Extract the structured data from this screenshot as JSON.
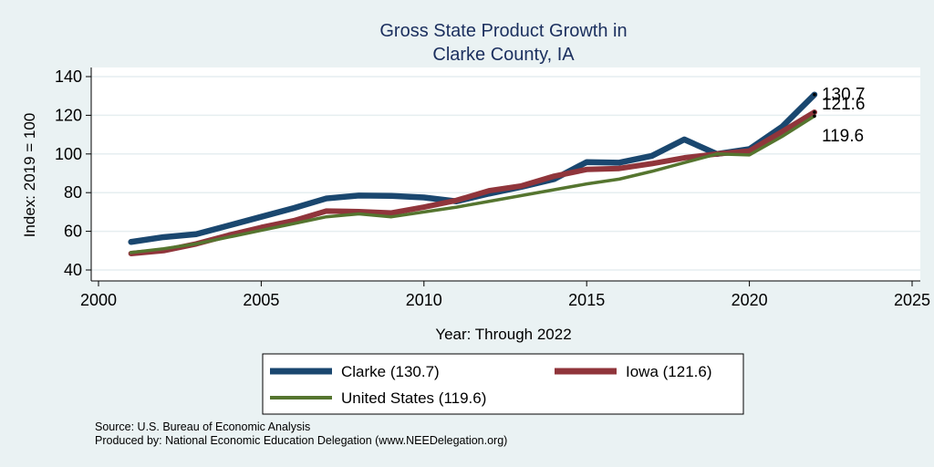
{
  "chart_data": {
    "type": "line",
    "title_line1": "Gross State Product Growth in",
    "title_line2": "Clarke County, IA",
    "xlabel": "Year: Through 2022",
    "ylabel": "Index: 2019 = 100",
    "xlim": [
      2000,
      2025
    ],
    "ylim": [
      40,
      140
    ],
    "x_ticks": [
      2000,
      2005,
      2010,
      2015,
      2020,
      2025
    ],
    "y_ticks": [
      40,
      60,
      80,
      100,
      120,
      140
    ],
    "grid": true,
    "legend_position": "bottom",
    "x": [
      2001,
      2002,
      2003,
      2004,
      2005,
      2006,
      2007,
      2008,
      2009,
      2010,
      2011,
      2012,
      2013,
      2014,
      2015,
      2016,
      2017,
      2018,
      2019,
      2020,
      2021,
      2022
    ],
    "series": [
      {
        "name": "Clarke",
        "legend_label": "Clarke  (130.7)",
        "end_label": "130.7",
        "color": "#1a476f",
        "values": [
          54.5,
          57.0,
          58.5,
          63.0,
          67.5,
          72.0,
          77.0,
          78.5,
          78.3,
          77.5,
          75.5,
          79.5,
          83.0,
          87.0,
          95.8,
          95.5,
          99.0,
          107.5,
          100.0,
          102.5,
          114.0,
          130.7
        ]
      },
      {
        "name": "Iowa",
        "legend_label": "Iowa (121.6)",
        "end_label": "121.6",
        "color": "#90353b",
        "values": [
          48.5,
          50.0,
          53.5,
          58.0,
          62.0,
          65.5,
          70.5,
          70.2,
          69.5,
          72.5,
          76.0,
          81.0,
          83.5,
          88.5,
          92.0,
          92.5,
          95.0,
          98.0,
          100.0,
          101.5,
          111.5,
          121.6
        ]
      },
      {
        "name": "United States",
        "legend_label": "United States (119.6)",
        "end_label": "119.6",
        "color": "#55752f",
        "values": [
          49.0,
          51.0,
          53.5,
          57.0,
          60.5,
          64.0,
          67.5,
          69.0,
          67.5,
          70.0,
          72.5,
          75.5,
          78.5,
          81.5,
          84.5,
          87.0,
          91.0,
          95.5,
          100.0,
          99.5,
          109.0,
          119.6
        ]
      }
    ]
  },
  "footnotes": {
    "source": "Source: U.S. Bureau of Economic Analysis",
    "produced": "Produced by: National Economic Education Delegation (www.NEEDelegation.org)"
  }
}
